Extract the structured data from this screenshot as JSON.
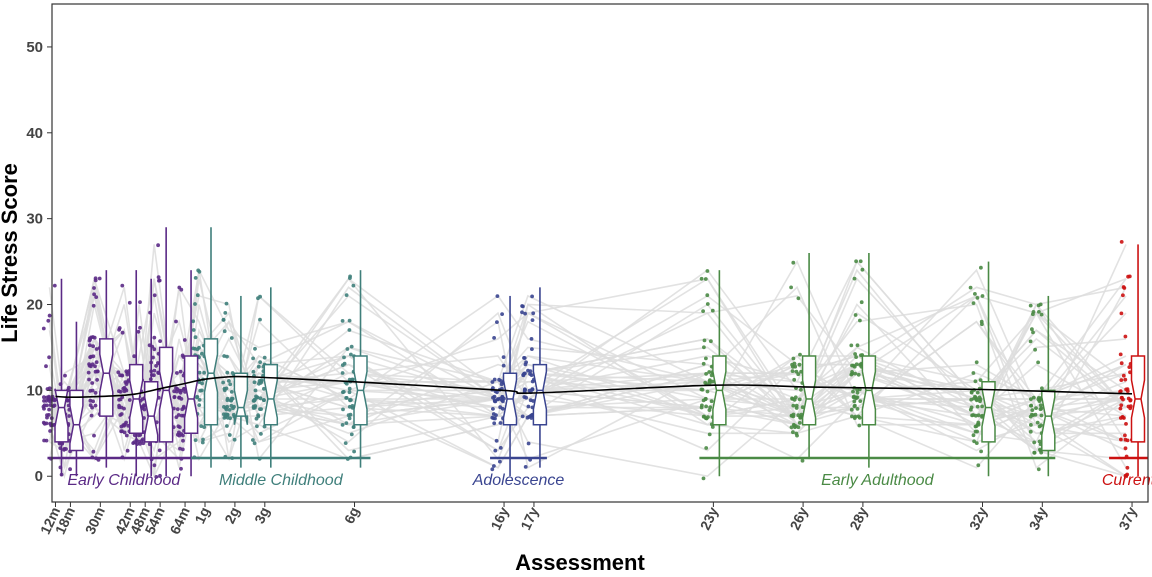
{
  "chart_data": {
    "type": "box",
    "title": "",
    "xlabel": "Assessment",
    "ylabel": "Life Stress Score",
    "ylim": [
      -3,
      55
    ],
    "yticks": [
      0,
      10,
      20,
      30,
      40,
      50
    ],
    "x_unit": "years",
    "xlim": [
      0.75,
      37.4
    ],
    "grid": false,
    "legend": "none",
    "assessments": [
      {
        "label": "12m",
        "age": 1.0,
        "period": "early_childhood",
        "median": 8,
        "q1": 4,
        "q3": 10,
        "wlo": 0,
        "whi": 23
      },
      {
        "label": "18m",
        "age": 1.5,
        "period": "early_childhood",
        "median": 6,
        "q1": 3,
        "q3": 10,
        "wlo": 0,
        "whi": 18
      },
      {
        "label": "30m",
        "age": 2.5,
        "period": "early_childhood",
        "median": 12,
        "q1": 7,
        "q3": 16,
        "wlo": 1,
        "whi": 24
      },
      {
        "label": "42m",
        "age": 3.5,
        "period": "early_childhood",
        "median": 9,
        "q1": 5,
        "q3": 13,
        "wlo": 0,
        "whi": 24
      },
      {
        "label": "48m",
        "age": 4.0,
        "period": "early_childhood",
        "median": 7,
        "q1": 4,
        "q3": 11,
        "wlo": 0,
        "whi": 23
      },
      {
        "label": "54m",
        "age": 4.5,
        "period": "early_childhood",
        "median": 10,
        "q1": 4,
        "q3": 15,
        "wlo": 0,
        "whi": 29
      },
      {
        "label": "64m",
        "age": 5.333,
        "period": "early_childhood",
        "median": 9,
        "q1": 5,
        "q3": 14,
        "wlo": 0,
        "whi": 24
      },
      {
        "label": "1g",
        "age": 6.0,
        "period": "middle_childhood",
        "median": 12,
        "q1": 6,
        "q3": 16,
        "wlo": 1,
        "whi": 29
      },
      {
        "label": "2g",
        "age": 7.0,
        "period": "middle_childhood",
        "median": 8,
        "q1": 7,
        "q3": 12,
        "wlo": 1,
        "whi": 21
      },
      {
        "label": "3g",
        "age": 8.0,
        "period": "middle_childhood",
        "median": 9,
        "q1": 6,
        "q3": 13,
        "wlo": 1,
        "whi": 22
      },
      {
        "label": "6g",
        "age": 11.0,
        "period": "middle_childhood",
        "median": 10,
        "q1": 6,
        "q3": 14,
        "wlo": 1,
        "whi": 24
      },
      {
        "label": "16y",
        "age": 16.0,
        "period": "adolescence",
        "median": 9,
        "q1": 6,
        "q3": 12,
        "wlo": 0,
        "whi": 21
      },
      {
        "label": "17y",
        "age": 17.0,
        "period": "adolescence",
        "median": 10,
        "q1": 6,
        "q3": 13,
        "wlo": 1,
        "whi": 22
      },
      {
        "label": "23y",
        "age": 23.0,
        "period": "early_adulthood",
        "median": 10,
        "q1": 6,
        "q3": 14,
        "wlo": 0,
        "whi": 24
      },
      {
        "label": "26y",
        "age": 26.0,
        "period": "early_adulthood",
        "median": 9,
        "q1": 6,
        "q3": 14,
        "wlo": 2,
        "whi": 26
      },
      {
        "label": "28y",
        "age": 28.0,
        "period": "early_adulthood",
        "median": 10,
        "q1": 6,
        "q3": 14,
        "wlo": 1,
        "whi": 26
      },
      {
        "label": "32y",
        "age": 32.0,
        "period": "early_adulthood",
        "median": 8,
        "q1": 4,
        "q3": 11,
        "wlo": 0,
        "whi": 25
      },
      {
        "label": "34y",
        "age": 34.0,
        "period": "early_adulthood",
        "median": 7,
        "q1": 3,
        "q3": 10,
        "wlo": 0,
        "whi": 21
      },
      {
        "label": "37y",
        "age": 37.0,
        "period": "current",
        "median": 9,
        "q1": 4,
        "q3": 14,
        "wlo": 0,
        "whi": 27
      }
    ],
    "trend_line": {
      "x": [
        1.0,
        1.5,
        2.5,
        3.5,
        4.0,
        4.5,
        5.333,
        6.0,
        7.0,
        8.0,
        11.0,
        16.0,
        17.0,
        23.0,
        26.0,
        28.0,
        32.0,
        34.0,
        37.0
      ],
      "y": [
        9.3,
        9.2,
        9.3,
        9.5,
        9.8,
        10.2,
        10.8,
        11.3,
        11.6,
        11.5,
        11.0,
        10.0,
        9.7,
        10.6,
        10.4,
        10.3,
        10.1,
        9.9,
        9.6
      ],
      "color": "#000000"
    },
    "periods": [
      {
        "key": "early_childhood",
        "label": "Early Childhood",
        "color": "#5b2a86",
        "x_start": 1.0,
        "x_end": 5.7
      },
      {
        "key": "middle_childhood",
        "label": "Middle Childhood",
        "color": "#3f7f7b",
        "x_start": 5.8,
        "x_end": 11.4
      },
      {
        "key": "adolescence",
        "label": "Adolescence",
        "color": "#3a4590",
        "x_start": 15.8,
        "x_end": 17.3
      },
      {
        "key": "early_adulthood",
        "label": "Early Adulthood",
        "color": "#4a8a45",
        "x_start": 22.8,
        "x_end": 34.3
      },
      {
        "key": "current",
        "label": "Current",
        "color": "#cc1111",
        "x_start": 36.5,
        "x_end": 37.4
      }
    ],
    "background_lines_color": "#dddddd"
  }
}
